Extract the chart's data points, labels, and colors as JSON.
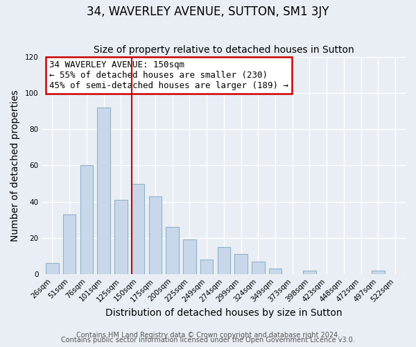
{
  "title": "34, WAVERLEY AVENUE, SUTTON, SM1 3JY",
  "subtitle": "Size of property relative to detached houses in Sutton",
  "xlabel": "Distribution of detached houses by size in Sutton",
  "ylabel": "Number of detached properties",
  "bar_labels": [
    "26sqm",
    "51sqm",
    "76sqm",
    "101sqm",
    "125sqm",
    "150sqm",
    "175sqm",
    "200sqm",
    "225sqm",
    "249sqm",
    "274sqm",
    "299sqm",
    "324sqm",
    "349sqm",
    "373sqm",
    "398sqm",
    "423sqm",
    "448sqm",
    "472sqm",
    "497sqm",
    "522sqm"
  ],
  "bar_values": [
    6,
    33,
    60,
    92,
    41,
    50,
    43,
    26,
    19,
    8,
    15,
    11,
    7,
    3,
    0,
    2,
    0,
    0,
    0,
    2,
    0
  ],
  "bar_color": "#c8d8ea",
  "bar_edge_color": "#90b0c8",
  "vline_x_index": 5,
  "vline_color": "#cc0000",
  "annotation_title": "34 WAVERLEY AVENUE: 150sqm",
  "annotation_line1": "← 55% of detached houses are smaller (230)",
  "annotation_line2": "45% of semi-detached houses are larger (189) →",
  "annotation_box_color": "#ffffff",
  "annotation_box_edge": "#cc0000",
  "ylim": [
    0,
    120
  ],
  "yticks": [
    0,
    20,
    40,
    60,
    80,
    100,
    120
  ],
  "footer1": "Contains HM Land Registry data © Crown copyright and database right 2024.",
  "footer2": "Contains public sector information licensed under the Open Government Licence v3.0.",
  "fig_bg_color": "#e8eef4",
  "plot_bg_color": "#e8eef4",
  "grid_color": "#ffffff",
  "title_fontsize": 12,
  "subtitle_fontsize": 10,
  "axis_label_fontsize": 10,
  "tick_fontsize": 7.5,
  "footer_fontsize": 7,
  "annotation_fontsize": 9
}
